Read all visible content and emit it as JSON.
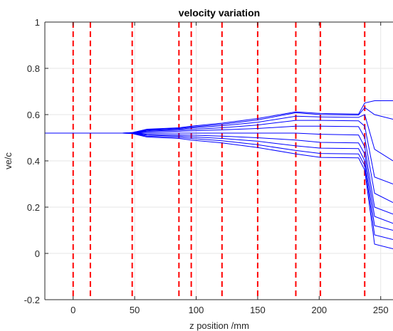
{
  "chart_data": {
    "type": "line",
    "title": "velocity variation",
    "xlabel": "z position /mm",
    "ylabel": "ve/c",
    "xlim": [
      -23,
      260
    ],
    "ylim": [
      -0.2,
      1
    ],
    "x_ticks": [
      0,
      50,
      100,
      150,
      200,
      250
    ],
    "x_tick_labels": [
      "0",
      "50",
      "100",
      "150",
      "200",
      "250"
    ],
    "y_ticks": [
      -0.2,
      0,
      0.2,
      0.4,
      0.6,
      0.8,
      1
    ],
    "y_tick_labels": [
      "-0.2",
      "0",
      "0.2",
      "0.4",
      "0.6",
      "0.8",
      "1"
    ],
    "grid": true,
    "vertical_markers": {
      "x": [
        0,
        14,
        48,
        86,
        96,
        121,
        150,
        181,
        201,
        237
      ],
      "color": "#ff0000",
      "style": "dashed"
    },
    "series_color": "#0000ff",
    "series": [
      {
        "x": [
          -23,
          40,
          48,
          60,
          86,
          96,
          121,
          150,
          181,
          201,
          232,
          237,
          245,
          260
        ],
        "y": [
          0.52,
          0.52,
          0.518,
          0.503,
          0.497,
          0.49,
          0.478,
          0.458,
          0.43,
          0.415,
          0.413,
          0.36,
          0.04,
          0.02
        ]
      },
      {
        "x": [
          -23,
          40,
          48,
          60,
          86,
          96,
          121,
          150,
          181,
          201,
          232,
          237,
          245,
          260
        ],
        "y": [
          0.52,
          0.52,
          0.519,
          0.507,
          0.502,
          0.497,
          0.487,
          0.47,
          0.445,
          0.432,
          0.43,
          0.38,
          0.08,
          0.06
        ]
      },
      {
        "x": [
          -23,
          40,
          48,
          60,
          86,
          96,
          121,
          150,
          181,
          201,
          232,
          237,
          245,
          260
        ],
        "y": [
          0.52,
          0.52,
          0.519,
          0.511,
          0.507,
          0.504,
          0.497,
          0.485,
          0.465,
          0.455,
          0.453,
          0.4,
          0.12,
          0.1
        ]
      },
      {
        "x": [
          -23,
          40,
          48,
          60,
          86,
          96,
          121,
          150,
          181,
          201,
          232,
          237,
          245,
          260
        ],
        "y": [
          0.52,
          0.52,
          0.52,
          0.515,
          0.512,
          0.511,
          0.507,
          0.5,
          0.49,
          0.48,
          0.478,
          0.43,
          0.16,
          0.13
        ]
      },
      {
        "x": [
          -23,
          40,
          48,
          60,
          86,
          96,
          121,
          150,
          181,
          201,
          232,
          237,
          245,
          260
        ],
        "y": [
          0.52,
          0.52,
          0.52,
          0.52,
          0.52,
          0.52,
          0.52,
          0.52,
          0.52,
          0.515,
          0.512,
          0.46,
          0.2,
          0.17
        ]
      },
      {
        "x": [
          -23,
          40,
          48,
          60,
          86,
          96,
          121,
          150,
          181,
          201,
          232,
          237,
          245,
          260
        ],
        "y": [
          0.52,
          0.52,
          0.521,
          0.525,
          0.528,
          0.53,
          0.534,
          0.54,
          0.55,
          0.55,
          0.548,
          0.5,
          0.26,
          0.22
        ]
      },
      {
        "x": [
          -23,
          40,
          48,
          60,
          86,
          96,
          121,
          150,
          181,
          201,
          232,
          237,
          245,
          260
        ],
        "y": [
          0.52,
          0.52,
          0.521,
          0.529,
          0.533,
          0.536,
          0.543,
          0.555,
          0.575,
          0.575,
          0.573,
          0.55,
          0.33,
          0.3
        ]
      },
      {
        "x": [
          -23,
          40,
          48,
          60,
          86,
          96,
          121,
          150,
          181,
          201,
          232,
          237,
          245,
          260
        ],
        "y": [
          0.52,
          0.52,
          0.521,
          0.532,
          0.537,
          0.542,
          0.552,
          0.567,
          0.593,
          0.59,
          0.588,
          0.6,
          0.45,
          0.4
        ]
      },
      {
        "x": [
          -23,
          40,
          48,
          60,
          86,
          96,
          121,
          150,
          181,
          201,
          232,
          237,
          245,
          260
        ],
        "y": [
          0.52,
          0.52,
          0.522,
          0.535,
          0.54,
          0.546,
          0.558,
          0.577,
          0.608,
          0.6,
          0.598,
          0.63,
          0.6,
          0.58
        ]
      },
      {
        "x": [
          -23,
          40,
          48,
          60,
          86,
          96,
          121,
          150,
          181,
          201,
          232,
          237,
          245,
          260
        ],
        "y": [
          0.52,
          0.52,
          0.522,
          0.537,
          0.543,
          0.55,
          0.563,
          0.583,
          0.612,
          0.605,
          0.602,
          0.65,
          0.66,
          0.66
        ]
      }
    ]
  }
}
